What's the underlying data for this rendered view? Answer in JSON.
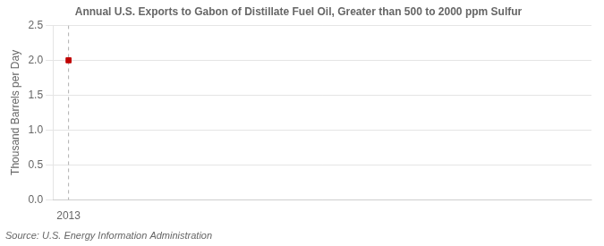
{
  "chart_data": {
    "type": "scatter",
    "title": "Annual U.S. Exports to Gabon of Distillate Fuel Oil, Greater than 500 to 2000 ppm Sulfur",
    "ylabel": "Thousand Barrels per Day",
    "source": "Source: U.S. Energy Information Administration",
    "x": [
      2013
    ],
    "values": [
      2.0
    ],
    "color": "#c00000",
    "marker": "square",
    "xlim": [
      2012.7,
      2023.0
    ],
    "ylim": [
      0.0,
      2.5
    ],
    "xticks": [
      2013
    ],
    "yticks": [
      {
        "value": 0.0,
        "label": "0.0"
      },
      {
        "value": 0.5,
        "label": "0.5"
      },
      {
        "value": 1.0,
        "label": "1.0"
      },
      {
        "value": 1.5,
        "label": "1.5"
      },
      {
        "value": 2.0,
        "label": "2.0"
      },
      {
        "value": 2.5,
        "label": "2.5"
      }
    ],
    "grid": "y",
    "vline": 2013
  }
}
